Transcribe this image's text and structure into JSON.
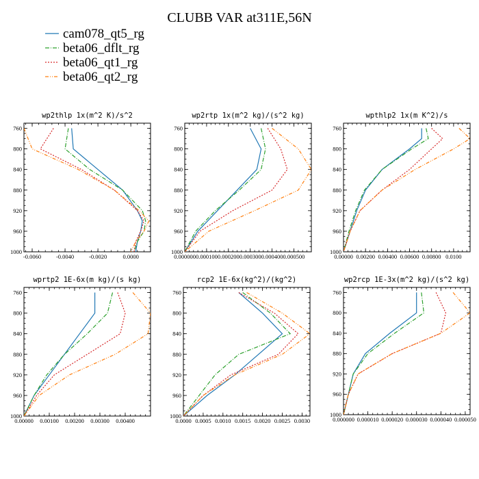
{
  "figure": {
    "title": "CLUBB VAR at311E,56N"
  },
  "legend": [
    {
      "name": "cam078_qt5_rg",
      "color": "#1f77b4"
    },
    {
      "name": "beta06_dflt_rg",
      "color": "#2ca02c"
    },
    {
      "name": "beta06_qt1_rg",
      "color": "#d62728"
    },
    {
      "name": "beta06_qt2_rg",
      "color": "#ff7f0e"
    }
  ],
  "chart_data": [
    {
      "type": "line",
      "title": "wp2thlp  1x(m^2 K)/s^2",
      "xlim": [
        -0.0065,
        0.0012
      ],
      "ylim": [
        750,
        1000
      ],
      "y_inverted": true,
      "xticks": [
        "-0.0060",
        "-0.0040",
        "-0.0020",
        "0.0000"
      ],
      "xtick_values": [
        -0.006,
        -0.004,
        -0.002,
        0.0
      ],
      "yticks": [
        "760",
        "800",
        "840",
        "880",
        "920",
        "960",
        "1000"
      ],
      "y": [
        760,
        800,
        840,
        880,
        920,
        940,
        960,
        980,
        1000
      ],
      "series": [
        {
          "name": "cam078_qt5_rg",
          "x": [
            -0.0036,
            -0.0035,
            -0.002,
            -0.0005,
            0.0004,
            0.0007,
            0.0006,
            0.0004,
            0.0003
          ]
        },
        {
          "name": "beta06_dflt_rg",
          "x": [
            -0.0038,
            -0.004,
            -0.0025,
            -0.0005,
            0.0007,
            0.0009,
            0.0008,
            0.0004,
            0.0002
          ]
        },
        {
          "name": "beta06_qt1_rg",
          "x": [
            -0.0047,
            -0.0055,
            -0.003,
            -0.001,
            0.0004,
            0.0008,
            0.0006,
            0.0003,
            0.0002
          ]
        },
        {
          "name": "beta06_qt2_rg",
          "x": [
            -0.0065,
            -0.006,
            -0.0032,
            -0.001,
            0.0005,
            0.0011,
            0.0008,
            0.0003,
            0.0
          ]
        }
      ]
    },
    {
      "type": "line",
      "title": "wp2rtp  1x(m^2 kg)/(s^2 kg)",
      "xlim": [
        0.0,
        0.00058
      ],
      "ylim": [
        750,
        1000
      ],
      "y_inverted": true,
      "xticks": [
        "0.000000",
        "0.000100",
        "0.000200",
        "0.000300",
        "0.000400",
        "0.000500"
      ],
      "xtick_values": [
        0.0,
        0.0001,
        0.0002,
        0.0003,
        0.0004,
        0.0005
      ],
      "yticks": [
        "760",
        "800",
        "840",
        "880",
        "920",
        "960",
        "1000"
      ],
      "y": [
        760,
        800,
        840,
        880,
        920,
        960,
        1000
      ],
      "series": [
        {
          "name": "cam078_qt5_rg",
          "x": [
            0.0003,
            0.00035,
            0.00033,
            0.00024,
            0.00015,
            6e-05,
            0.0
          ]
        },
        {
          "name": "beta06_dflt_rg",
          "x": [
            0.00035,
            0.00037,
            0.00035,
            0.00025,
            0.00014,
            5e-05,
            0.0
          ]
        },
        {
          "name": "beta06_qt1_rg",
          "x": [
            0.00038,
            0.00044,
            0.00047,
            0.0004,
            0.00022,
            7e-05,
            0.0
          ]
        },
        {
          "name": "beta06_qt2_rg",
          "x": [
            0.0004,
            0.00052,
            0.00058,
            0.00052,
            0.00032,
            0.00011,
            0.0
          ]
        }
      ]
    },
    {
      "type": "line",
      "title": "wpthlp2  1x(m K^2)/s",
      "xlim": [
        0.0,
        0.0115
      ],
      "ylim": [
        750,
        1000
      ],
      "y_inverted": true,
      "xticks": [
        "0.00000",
        "0.00200",
        "0.00400",
        "0.00600",
        "0.00800",
        "0.0100"
      ],
      "xtick_values": [
        0.0,
        0.002,
        0.004,
        0.006,
        0.008,
        0.01
      ],
      "yticks": [
        "760",
        "800",
        "840",
        "880",
        "920",
        "960",
        "1000"
      ],
      "y": [
        760,
        780,
        800,
        840,
        880,
        920,
        960,
        1000
      ],
      "series": [
        {
          "name": "cam078_qt5_rg",
          "x": [
            0.0071,
            0.0071,
            0.006,
            0.0035,
            0.002,
            0.0012,
            0.0006,
            0.0
          ]
        },
        {
          "name": "beta06_dflt_rg",
          "x": [
            0.0075,
            0.0077,
            0.0062,
            0.0035,
            0.0019,
            0.0011,
            0.0005,
            0.0
          ]
        },
        {
          "name": "beta06_qt1_rg",
          "x": [
            0.008,
            0.009,
            0.008,
            0.006,
            0.0035,
            0.0015,
            0.0006,
            0.0
          ]
        },
        {
          "name": "beta06_qt2_rg",
          "x": [
            0.0105,
            0.0115,
            0.01,
            0.0065,
            0.0035,
            0.0015,
            0.0006,
            0.0
          ]
        }
      ]
    },
    {
      "type": "line",
      "title": "wprtp2  1E-6x(m kg)/(s kg)",
      "xlim": [
        0.0,
        0.005
      ],
      "ylim": [
        750,
        1000
      ],
      "y_inverted": true,
      "xticks": [
        "0.00000",
        "0.00100",
        "0.00200",
        "0.00300",
        "0.00400"
      ],
      "xtick_values": [
        0.0,
        0.001,
        0.002,
        0.003,
        0.004
      ],
      "yticks": [
        "760",
        "800",
        "840",
        "880",
        "920",
        "960",
        "1000"
      ],
      "y": [
        760,
        800,
        840,
        880,
        920,
        960,
        1000
      ],
      "series": [
        {
          "name": "cam078_qt5_rg",
          "x": [
            0.0028,
            0.0028,
            0.0022,
            0.0016,
            0.001,
            0.0004,
            0.0
          ]
        },
        {
          "name": "beta06_dflt_rg",
          "x": [
            0.0035,
            0.0033,
            0.0025,
            0.0016,
            0.0009,
            0.0004,
            0.0
          ]
        },
        {
          "name": "beta06_qt1_rg",
          "x": [
            0.0037,
            0.004,
            0.0038,
            0.0025,
            0.0012,
            0.0005,
            0.0
          ]
        },
        {
          "name": "beta06_qt2_rg",
          "x": [
            0.0043,
            0.005,
            0.0049,
            0.0036,
            0.0018,
            0.0006,
            0.0
          ]
        }
      ]
    },
    {
      "type": "line",
      "title": "rcp2  1E-6x(kg^2)/(kg^2)",
      "xlim": [
        0.0,
        0.0032
      ],
      "ylim": [
        750,
        1000
      ],
      "y_inverted": true,
      "xticks": [
        "0.0000",
        "0.0005",
        "0.0010",
        "0.0015",
        "0.0020",
        "0.0025",
        "0.0030"
      ],
      "xtick_values": [
        0.0,
        0.0005,
        0.001,
        0.0015,
        0.002,
        0.0025,
        0.003
      ],
      "yticks": [
        "760",
        "800",
        "840",
        "880",
        "920",
        "960",
        "1000"
      ],
      "y": [
        760,
        800,
        840,
        880,
        920,
        960,
        1000
      ],
      "series": [
        {
          "name": "cam078_qt5_rg",
          "x": [
            0.0014,
            0.002,
            0.0025,
            0.0019,
            0.0013,
            0.0006,
            0.0
          ]
        },
        {
          "name": "beta06_dflt_rg",
          "x": [
            0.0015,
            0.0022,
            0.0027,
            0.0014,
            0.0008,
            0.0004,
            0.0
          ]
        },
        {
          "name": "beta06_qt1_rg",
          "x": [
            0.0014,
            0.0023,
            0.0029,
            0.0024,
            0.0012,
            0.0005,
            0.0
          ]
        },
        {
          "name": "beta06_qt2_rg",
          "x": [
            0.0016,
            0.0025,
            0.0032,
            0.0025,
            0.0013,
            0.0005,
            0.0
          ]
        }
      ]
    },
    {
      "type": "line",
      "title": "wp2rcp  1E-3x(m^2 kg)/(s^2 kg)",
      "xlim": [
        0.0,
        5.2e-05
      ],
      "ylim": [
        750,
        1000
      ],
      "y_inverted": true,
      "xticks": [
        "0.000000",
        "0.000010",
        "0.000020",
        "0.000030",
        "0.000040",
        "0.000050"
      ],
      "xtick_values": [
        0.0,
        1e-05,
        2e-05,
        3e-05,
        4e-05,
        5e-05
      ],
      "yticks": [
        "760",
        "800",
        "840",
        "880",
        "920",
        "960",
        "1000"
      ],
      "y": [
        760,
        800,
        840,
        880,
        920,
        960,
        1000
      ],
      "series": [
        {
          "name": "cam078_qt5_rg",
          "x": [
            3e-05,
            3e-05,
            1.9e-05,
            9e-06,
            4e-06,
            2e-06,
            0.0
          ]
        },
        {
          "name": "beta06_dflt_rg",
          "x": [
            3.2e-05,
            3.3e-05,
            2.1e-05,
            1e-05,
            4e-06,
            2e-06,
            0.0
          ]
        },
        {
          "name": "beta06_qt1_rg",
          "x": [
            3.8e-05,
            4.2e-05,
            4e-05,
            2e-05,
            6e-06,
            2e-06,
            0.0
          ]
        },
        {
          "name": "beta06_qt2_rg",
          "x": [
            4.5e-05,
            5.2e-05,
            4e-05,
            2e-05,
            6e-06,
            2e-06,
            0.0
          ]
        }
      ]
    }
  ]
}
